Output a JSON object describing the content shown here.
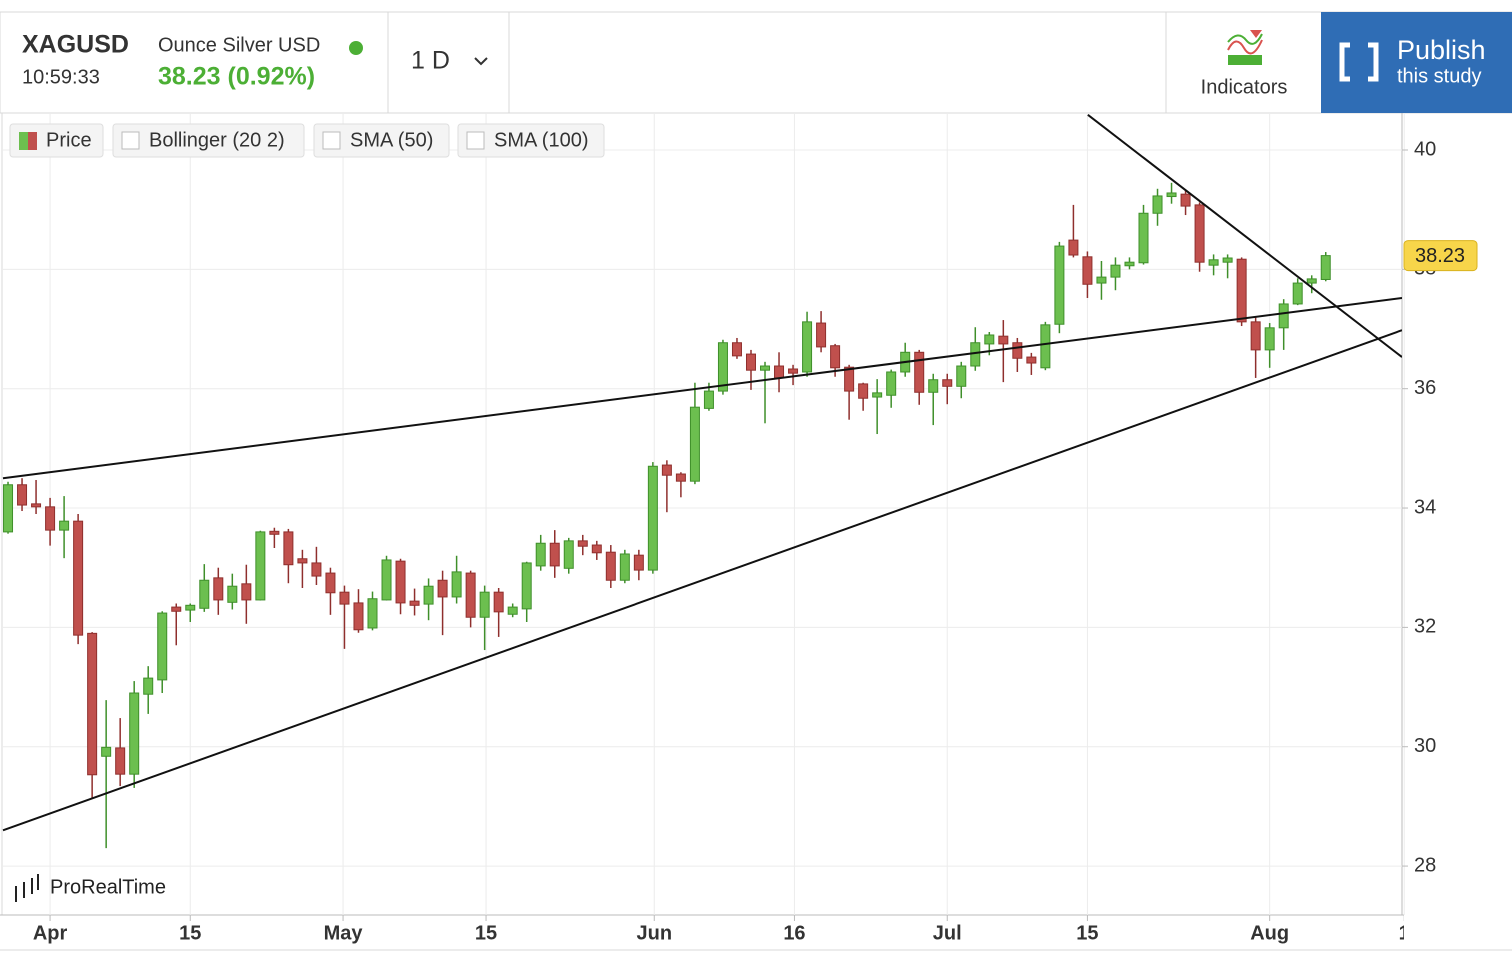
{
  "header": {
    "symbol": "XAGUSD",
    "name": "Ounce Silver USD",
    "time": "10:59:33",
    "price": "38.23 (0.92%)",
    "interval": "1 D",
    "indicators": "Indicators",
    "publish": [
      "Publish",
      "this study"
    ]
  },
  "legend": [
    "Price",
    "Bollinger (20 2)",
    "SMA (50)",
    "SMA (100)"
  ],
  "watermark": "ProRealTime",
  "chart_data": {
    "type": "candlestick",
    "up_color": "#6cbf4f",
    "down_color": "#c0504d",
    "open": [
      33.6,
      34.39,
      34.07,
      34.02,
      33.63,
      33.78,
      31.9,
      29.84,
      29.98,
      29.54,
      30.88,
      31.12,
      32.34,
      32.29,
      32.32,
      32.83,
      32.42,
      32.73,
      32.46,
      33.61,
      33.6,
      33.15,
      33.08,
      32.91,
      32.59,
      32.41,
      31.99,
      32.46,
      33.11,
      32.44,
      32.39,
      32.79,
      32.51,
      32.91,
      32.17,
      32.59,
      32.22,
      32.31,
      33.03,
      33.41,
      32.99,
      33.45,
      33.38,
      33.26,
      32.79,
      33.21,
      32.96,
      34.72,
      34.57,
      34.45,
      35.67,
      35.96,
      36.77,
      36.58,
      36.31,
      36.38,
      36.33,
      36.28,
      37.1,
      36.72,
      36.36,
      36.08,
      35.86,
      35.89,
      36.28,
      36.61,
      35.94,
      36.15,
      36.04,
      36.38,
      36.75,
      36.88,
      36.77,
      36.53,
      36.35,
      37.08,
      38.49,
      38.21,
      37.77,
      37.87,
      38.06,
      38.11,
      38.94,
      39.22,
      39.26,
      39.08,
      38.07,
      38.12,
      38.17,
      37.12,
      36.65,
      37.02,
      37.42,
      37.77,
      37.83
    ],
    "high": [
      34.44,
      34.5,
      34.47,
      34.17,
      34.2,
      33.9,
      31.92,
      30.78,
      30.48,
      31.1,
      31.35,
      32.27,
      32.4,
      32.4,
      33.06,
      33.0,
      32.9,
      33.05,
      33.62,
      33.67,
      33.65,
      33.3,
      33.35,
      33.0,
      32.7,
      32.64,
      32.6,
      33.2,
      33.15,
      32.65,
      32.82,
      32.95,
      33.2,
      32.95,
      32.7,
      32.66,
      32.4,
      33.1,
      33.55,
      33.63,
      33.5,
      33.55,
      33.45,
      33.38,
      33.3,
      33.3,
      34.77,
      34.8,
      34.6,
      36.1,
      36.1,
      36.82,
      36.85,
      36.65,
      36.45,
      36.61,
      36.4,
      37.29,
      37.3,
      36.75,
      36.4,
      36.1,
      36.16,
      36.32,
      36.77,
      36.65,
      36.25,
      36.25,
      36.45,
      37.03,
      36.95,
      37.15,
      36.85,
      36.6,
      37.12,
      38.46,
      39.08,
      38.3,
      38.14,
      38.2,
      38.2,
      39.08,
      39.35,
      39.45,
      39.33,
      39.12,
      38.25,
      38.25,
      38.2,
      37.2,
      37.1,
      37.5,
      37.85,
      37.9,
      38.29
    ],
    "low": [
      33.57,
      33.95,
      33.9,
      33.37,
      33.16,
      31.72,
      29.14,
      28.3,
      29.34,
      29.31,
      30.55,
      30.9,
      31.7,
      32.09,
      32.26,
      32.21,
      32.3,
      32.06,
      32.45,
      33.33,
      32.74,
      32.66,
      32.71,
      32.21,
      31.64,
      31.91,
      31.95,
      32.45,
      32.22,
      32.2,
      32.12,
      31.87,
      32.4,
      32.0,
      31.62,
      31.84,
      32.17,
      32.09,
      32.95,
      32.83,
      32.9,
      33.21,
      33.13,
      32.66,
      32.74,
      32.79,
      32.9,
      33.93,
      34.18,
      34.4,
      35.63,
      35.9,
      36.5,
      35.98,
      35.42,
      35.94,
      36.06,
      36.2,
      36.61,
      36.2,
      35.48,
      35.63,
      35.24,
      35.68,
      36.2,
      35.73,
      35.39,
      35.74,
      35.84,
      36.3,
      36.56,
      36.11,
      36.28,
      36.23,
      36.31,
      36.93,
      38.2,
      37.52,
      37.49,
      37.65,
      38.0,
      38.08,
      38.73,
      39.1,
      38.91,
      37.96,
      37.9,
      37.85,
      37.05,
      36.18,
      36.35,
      36.65,
      37.4,
      37.6,
      37.8
    ],
    "close": [
      34.39,
      34.05,
      34.02,
      33.63,
      33.78,
      31.87,
      29.53,
      29.99,
      29.54,
      30.9,
      31.15,
      32.24,
      32.27,
      32.37,
      32.79,
      32.46,
      32.69,
      32.46,
      33.6,
      33.56,
      33.05,
      33.08,
      32.86,
      32.58,
      32.39,
      31.96,
      32.48,
      33.13,
      32.41,
      32.37,
      32.69,
      32.51,
      32.93,
      32.17,
      32.59,
      32.26,
      32.34,
      33.08,
      33.41,
      33.03,
      33.45,
      33.36,
      33.25,
      32.79,
      33.23,
      32.96,
      34.7,
      34.55,
      34.45,
      35.69,
      35.96,
      36.77,
      36.55,
      36.31,
      36.38,
      36.18,
      36.26,
      37.12,
      36.7,
      36.35,
      35.96,
      35.84,
      35.93,
      36.28,
      36.61,
      35.94,
      36.15,
      36.04,
      36.38,
      36.77,
      36.9,
      36.75,
      36.51,
      36.43,
      37.07,
      38.39,
      38.24,
      37.75,
      37.87,
      38.07,
      38.12,
      38.94,
      39.23,
      39.28,
      39.06,
      38.12,
      38.16,
      38.19,
      37.12,
      36.65,
      37.02,
      37.42,
      37.77,
      37.84,
      38.23
    ],
    "last_price": 38.23,
    "trendlines": [
      {
        "x": [
          -0.36,
          99.44
        ],
        "y": [
          34.5,
          37.52
        ]
      },
      {
        "x": [
          -0.36,
          99.44
        ],
        "y": [
          28.6,
          36.98
        ]
      },
      {
        "x": [
          77.03,
          99.44
        ],
        "y": [
          40.59,
          36.53
        ]
      }
    ],
    "xlim": [
      -0.43,
      99.44
    ],
    "xticks": [
      {
        "value": 3,
        "label": "Apr"
      },
      {
        "value": 13,
        "label": "15"
      },
      {
        "value": 23.9,
        "label": "May"
      },
      {
        "value": 34.1,
        "label": "15"
      },
      {
        "value": 46.1,
        "label": "Jun"
      },
      {
        "value": 56.1,
        "label": "16"
      },
      {
        "value": 67,
        "label": "Jul"
      },
      {
        "value": 77,
        "label": "15"
      },
      {
        "value": 90,
        "label": "Aug"
      },
      {
        "value": 99.6,
        "label": "1"
      }
    ],
    "ylim": [
      27.18,
      40.62
    ],
    "yticks": [
      28,
      30,
      32,
      34,
      36,
      38,
      40
    ],
    "grid": true
  }
}
